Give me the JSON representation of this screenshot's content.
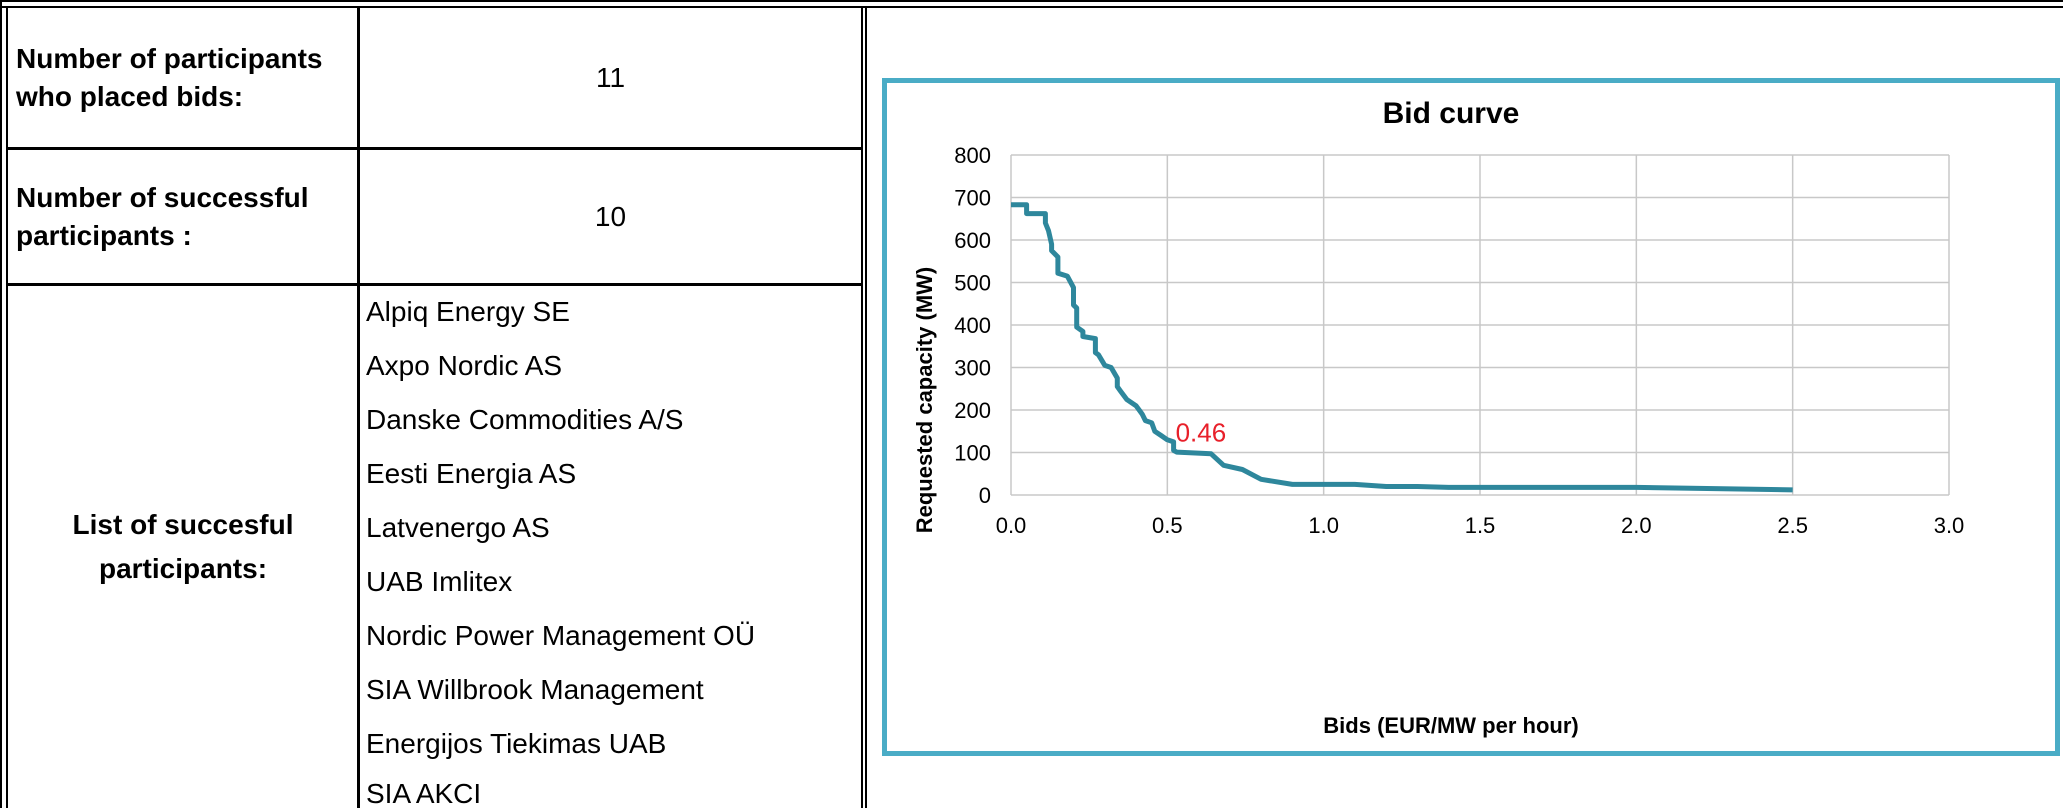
{
  "table": {
    "rows": [
      {
        "label": "Number of participants who placed bids:",
        "label_lines": [
          "Number of participants",
          "who placed bids:"
        ],
        "value": "11"
      },
      {
        "label": "Number of successful participants :",
        "label_lines": [
          "Number of successful",
          "participants :"
        ],
        "value": "10"
      }
    ],
    "list_label_lines": [
      "List of succesful",
      "participants:"
    ],
    "participants": [
      "Alpiq Energy SE",
      "Axpo Nordic AS",
      "Danske Commodities A/S",
      "Eesti Energia AS",
      "Latvenergo AS",
      "UAB Imlitex",
      "Nordic Power Management OÜ",
      "SIA Willbrook Management",
      "Energijos Tiekimas UAB",
      "SIA AKCI"
    ]
  },
  "colors": {
    "line": "#2e879c",
    "frame": "#4aacc6",
    "annotation": "#e8202a",
    "grid": "#c8c8c8"
  },
  "chart_data": {
    "type": "line",
    "title": "Bid curve",
    "xlabel": "Bids (EUR/MW per hour)",
    "ylabel": "Requested capacity (MW)",
    "xlim": [
      0,
      3.0
    ],
    "ylim": [
      0,
      800
    ],
    "xticks": [
      "0.0",
      "0.5",
      "1.0",
      "1.5",
      "2.0",
      "2.5",
      "3.0"
    ],
    "yticks": [
      "0",
      "100",
      "200",
      "300",
      "400",
      "500",
      "600",
      "700",
      "800"
    ],
    "grid": true,
    "legend": "none",
    "annotation": {
      "text": "0.46",
      "x": 0.52,
      "y": 150
    },
    "series": [
      {
        "x": [
          0.0,
          0.05,
          0.05,
          0.11,
          0.11,
          0.12,
          0.13,
          0.13,
          0.15,
          0.15,
          0.18,
          0.2,
          0.2,
          0.21,
          0.21,
          0.23,
          0.23,
          0.27,
          0.27,
          0.28,
          0.3,
          0.32,
          0.34,
          0.34,
          0.35,
          0.37,
          0.4,
          0.42,
          0.43,
          0.45,
          0.46,
          0.48,
          0.5,
          0.52,
          0.52,
          0.53,
          0.64,
          0.68,
          0.74,
          0.8,
          0.9,
          1.1,
          1.2,
          1.3,
          1.4,
          2.0,
          2.5
        ],
        "y": [
          683,
          683,
          662,
          662,
          640,
          622,
          590,
          575,
          560,
          522,
          515,
          488,
          447,
          440,
          395,
          385,
          373,
          368,
          335,
          330,
          305,
          300,
          275,
          255,
          245,
          225,
          210,
          190,
          175,
          170,
          150,
          140,
          130,
          125,
          105,
          101,
          97,
          70,
          60,
          37,
          25,
          25,
          20,
          20,
          18,
          18,
          12
        ]
      }
    ]
  }
}
